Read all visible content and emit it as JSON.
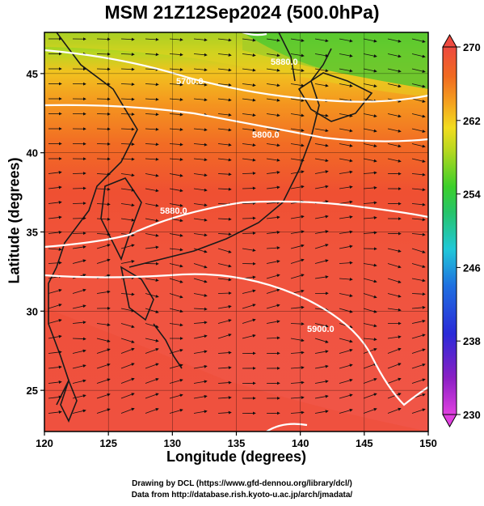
{
  "title": "MSM 21Z12Sep2024 (500.0hPa)",
  "xlabel": "Longitude (degrees)",
  "ylabel": "Latitude  (degrees)",
  "credit_line1": "Drawing by DCL (https://www.gfd-dennou.org/library/dcl/)",
  "credit_line2": "Data from http://database.rish.kyoto-u.ac.jp/arch/jmadata/",
  "map": {
    "lon_range": [
      120,
      150
    ],
    "lat_range": [
      22.4,
      47.6
    ],
    "lon_ticks": [
      "120",
      "125",
      "130",
      "135",
      "140",
      "145",
      "150"
    ],
    "lat_ticks": [
      "25",
      "30",
      "35",
      "40",
      "45"
    ],
    "grid": true,
    "colorbar": {
      "min": 230,
      "max": 270,
      "ticks": [
        "230",
        "238",
        "246",
        "254",
        "262",
        "270"
      ],
      "colors": [
        "#d63ad6",
        "#8a1fc4",
        "#2a2ad8",
        "#1f6fe0",
        "#20c8d8",
        "#26c46a",
        "#3ccf2a",
        "#a9d81f",
        "#f0dc1f",
        "#f4a01f",
        "#f0701f",
        "#e8442a",
        "#f2545a"
      ]
    },
    "contours": [
      {
        "label": "5700.0"
      },
      {
        "label": "5800.0"
      },
      {
        "label": "5880.0"
      },
      {
        "label": "5900.0"
      },
      {
        "label": "5880.0"
      }
    ]
  }
}
